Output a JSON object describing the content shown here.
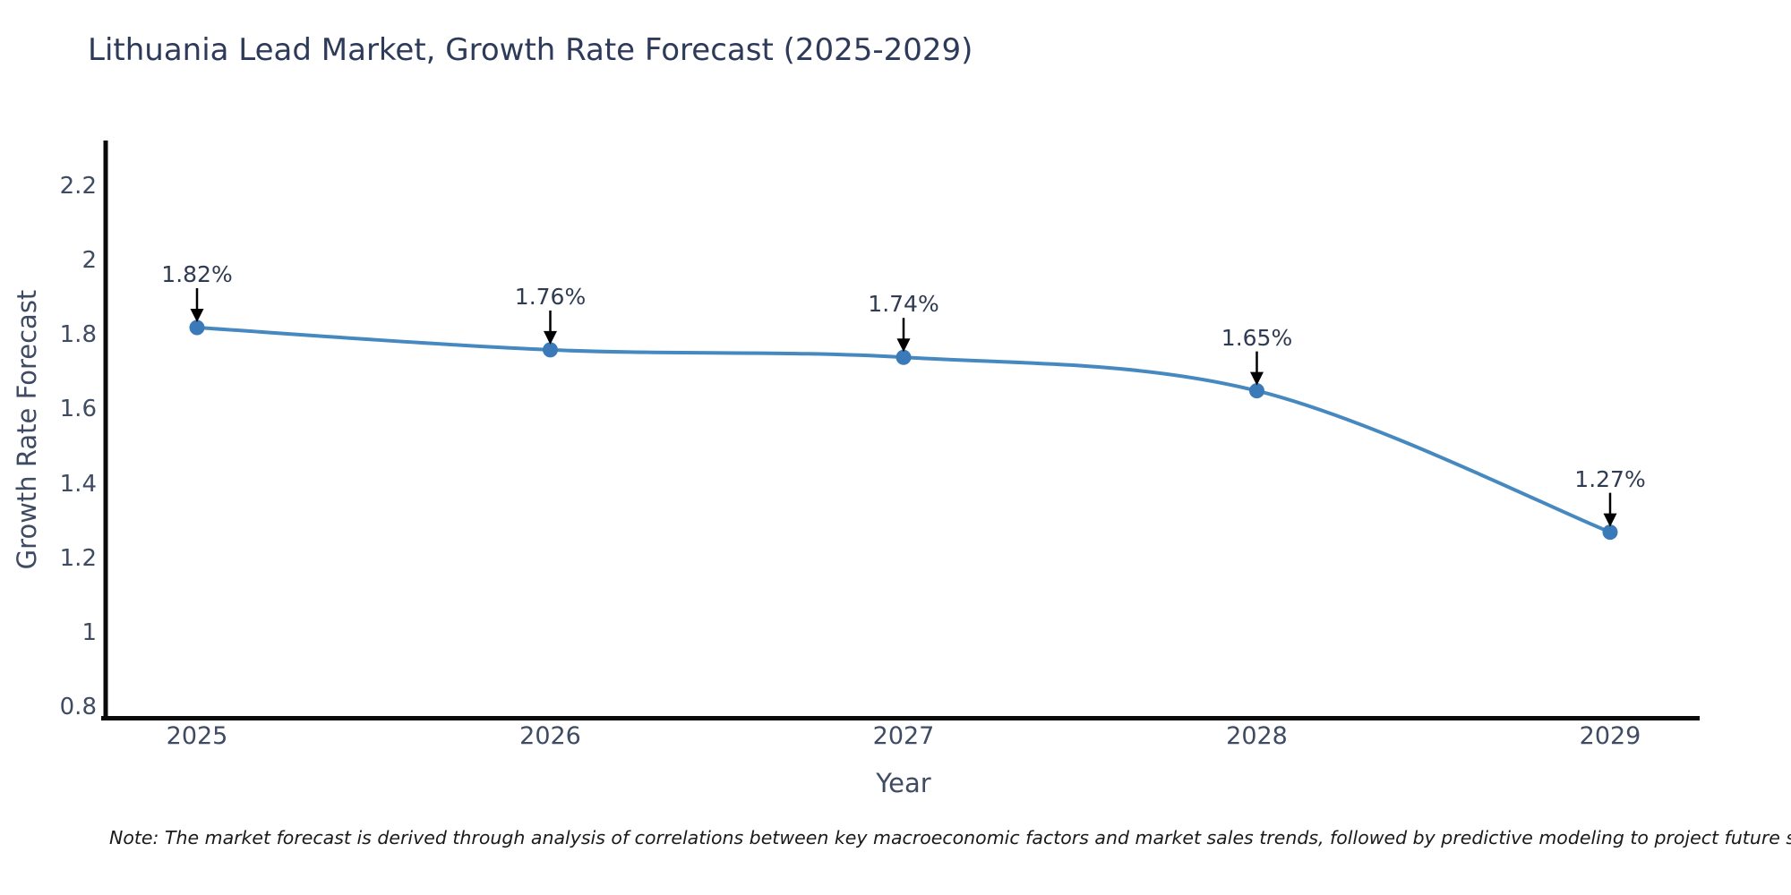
{
  "chart_data": {
    "type": "line",
    "title": "Lithuania Lead Market, Growth Rate Forecast (2025-2029)",
    "categories": [
      "2025",
      "2026",
      "2027",
      "2028",
      "2029"
    ],
    "series": [
      {
        "name": "Growth Rate Forecast",
        "values": [
          1.82,
          1.76,
          1.74,
          1.65,
          1.27
        ]
      }
    ],
    "data_labels": [
      "1.82%",
      "1.76%",
      "1.74%",
      "1.65%",
      "1.27%"
    ],
    "xlabel": "Year",
    "ylabel": "Growth Rate Forecast",
    "ylim": [
      0.8,
      2.2
    ],
    "ytick_values": [
      0.8,
      1,
      1.2,
      1.4,
      1.6,
      1.8,
      2,
      2.2
    ],
    "ytick_labels": [
      "0.8",
      "1",
      "1.2",
      "1.4",
      "1.6",
      "1.8",
      "2",
      "2.2"
    ],
    "grid": false,
    "legend": false,
    "line_shape": "spline",
    "annotation_style": "value-above-with-down-arrow",
    "colors": {
      "line": "#4688c0",
      "marker": "#3a7ab8",
      "arrow": "#000000",
      "axis": "#0a0a0a",
      "title_text": "#2e3a59",
      "tick_text": "#3f4b63",
      "annotation_text": "#2f3b52",
      "note_text": "#1a1a1a",
      "background": "#ffffff"
    }
  },
  "note": "Note: The market forecast is derived through analysis of correlations between key macroeconomic factors and market sales trends, followed by predictive modeling to project future sales"
}
